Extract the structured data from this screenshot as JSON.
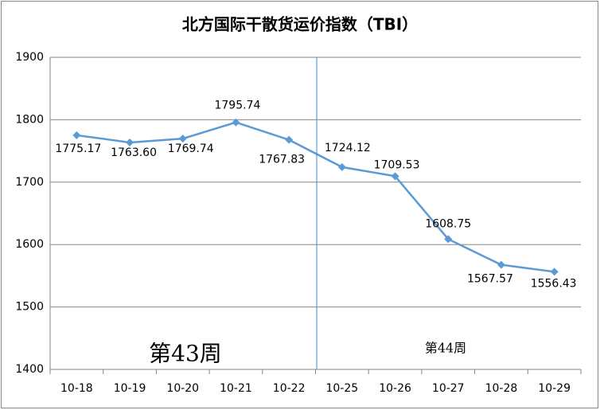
{
  "chart_data": {
    "type": "line",
    "title": "北方国际干散货运价指数（TBI）",
    "categories": [
      "10-18",
      "10-19",
      "10-20",
      "10-21",
      "10-22",
      "10-25",
      "10-26",
      "10-27",
      "10-28",
      "10-29"
    ],
    "series": [
      {
        "color": "#5b9bd5",
        "values": [
          1775.17,
          1763.6,
          1769.74,
          1795.74,
          1767.83,
          1724.12,
          1709.53,
          1608.75,
          1567.57,
          1556.43
        ],
        "value_labels": [
          "1775.17",
          "1763.60",
          "1769.74",
          "1795.74",
          "1767.83",
          "1724.12",
          "1709.53",
          "1608.75",
          "1567.57",
          "1556.43"
        ]
      }
    ],
    "ylim": [
      1400,
      1900
    ],
    "yticks": [
      1400,
      1500,
      1600,
      1700,
      1800,
      1900
    ],
    "grid": true,
    "annotations": [
      "第43周",
      "第44周"
    ]
  }
}
